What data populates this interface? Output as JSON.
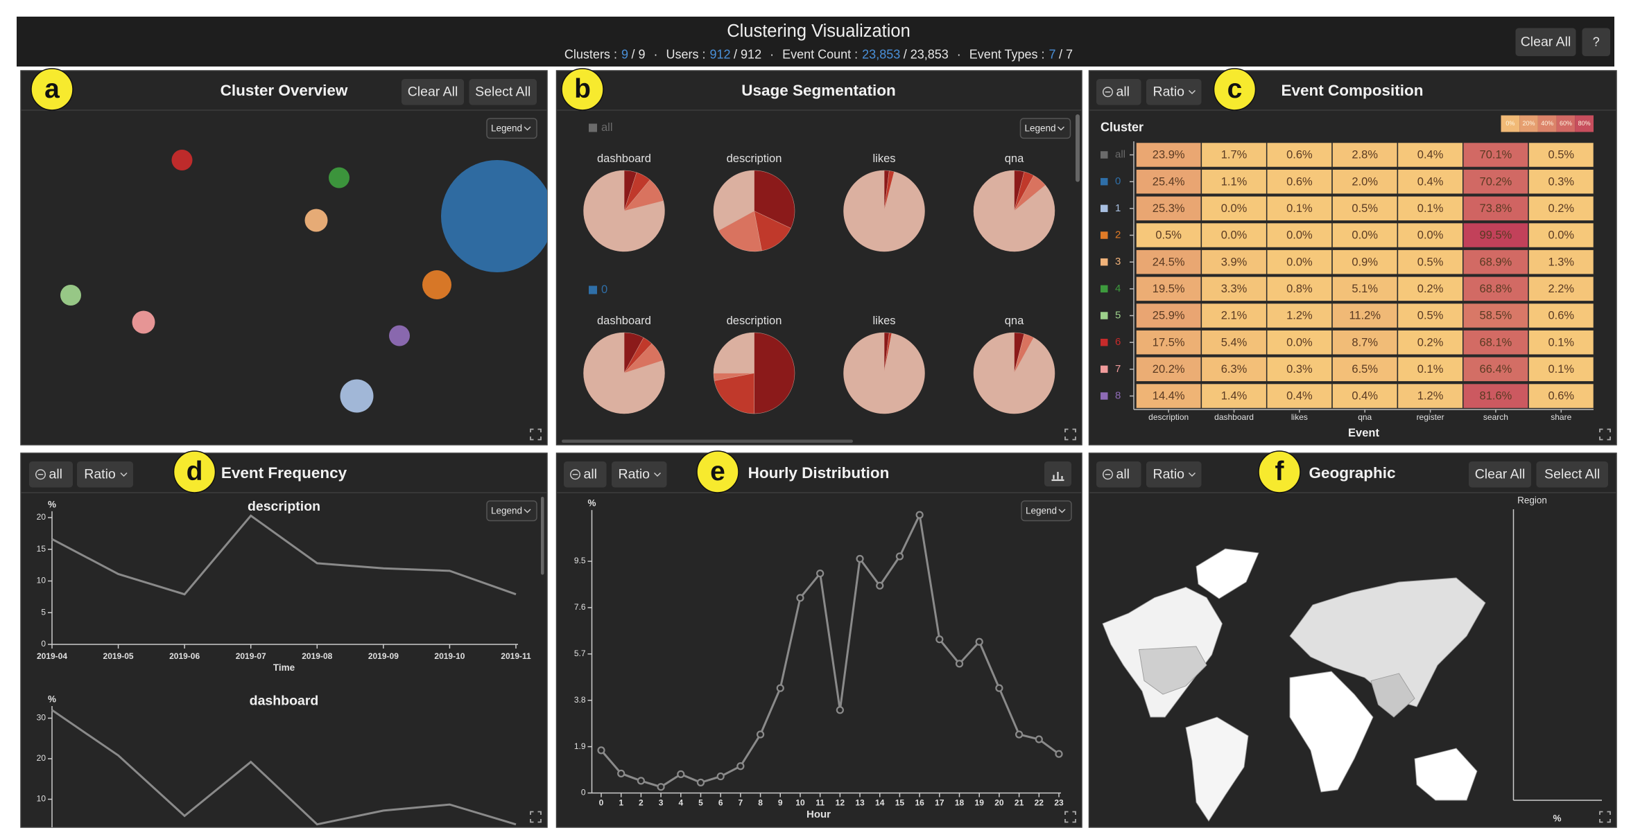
{
  "header": {
    "title": "Clustering Visualization",
    "separator": "·",
    "stats": [
      {
        "label": "Clusters :",
        "selected": "9",
        "total": "/ 9"
      },
      {
        "label": "Users :",
        "selected": "912",
        "total": "/ 912"
      },
      {
        "label": "Event Count :",
        "selected": "23,853",
        "total": "/ 23,853"
      },
      {
        "label": "Event Types :",
        "selected": "7",
        "total": "/ 7"
      }
    ],
    "buttons": [
      "Clear All",
      "?"
    ]
  },
  "panels": {
    "a": {
      "badge": "a",
      "title": "Cluster Overview",
      "buttons": [
        "Clear All",
        "Select All"
      ],
      "legend": "Legend"
    },
    "b": {
      "badge": "b",
      "title": "Usage Segmentation",
      "legend": "Legend",
      "slice_colors": [
        "#8b1a1a",
        "#c0392b",
        "#d9735f",
        "#dbb0a0"
      ],
      "groups": [
        {
          "name": "all",
          "color": "#6b6b6b",
          "pies": [
            {
              "label": "dashboard",
              "values": [
                5,
                6,
                10,
                79
              ]
            },
            {
              "label": "description",
              "values": [
                32,
                15,
                20,
                33
              ]
            },
            {
              "label": "likes",
              "values": [
                2,
                2,
                0,
                96
              ]
            },
            {
              "label": "qna",
              "values": [
                4,
                4,
                6,
                86
              ]
            }
          ]
        },
        {
          "name": "0",
          "color": "#2f6fa8",
          "pies": [
            {
              "label": "dashboard",
              "values": [
                8,
                4,
                8,
                80
              ]
            },
            {
              "label": "description",
              "values": [
                50,
                22,
                3,
                25
              ]
            },
            {
              "label": "likes",
              "values": [
                2,
                1,
                0,
                97
              ]
            },
            {
              "label": "qna",
              "values": [
                4,
                0,
                4,
                92
              ]
            }
          ]
        }
      ]
    },
    "c": {
      "badge": "c",
      "title": "Event Composition",
      "buttons": [
        "all",
        "Ratio"
      ],
      "row_header": "Cluster",
      "scale_labels": [
        "0%",
        "20%",
        "40%",
        "60%",
        "80%"
      ],
      "columns": [
        "description",
        "dashboard",
        "likes",
        "qna",
        "register",
        "search",
        "share"
      ],
      "axis_title": "Event",
      "rows": [
        {
          "label": "all",
          "color": "#6b6b6b",
          "cells": [
            "23.9%",
            "1.7%",
            "0.6%",
            "2.8%",
            "0.4%",
            "70.1%",
            "0.5%"
          ]
        },
        {
          "label": "0",
          "color": "#2f6fa8",
          "cells": [
            "25.4%",
            "1.1%",
            "0.6%",
            "2.0%",
            "0.4%",
            "70.2%",
            "0.3%"
          ]
        },
        {
          "label": "1",
          "color": "#a8bfe0",
          "cells": [
            "25.3%",
            "0.0%",
            "0.1%",
            "0.5%",
            "0.1%",
            "73.8%",
            "0.2%"
          ]
        },
        {
          "label": "2",
          "color": "#e07b27",
          "cells": [
            "0.5%",
            "0.0%",
            "0.0%",
            "0.0%",
            "0.0%",
            "99.5%",
            "0.0%"
          ]
        },
        {
          "label": "3",
          "color": "#f0b27a",
          "cells": [
            "24.5%",
            "3.9%",
            "0.0%",
            "0.9%",
            "0.5%",
            "68.9%",
            "1.3%"
          ]
        },
        {
          "label": "4",
          "color": "#3d9a3d",
          "cells": [
            "19.5%",
            "3.3%",
            "0.8%",
            "5.1%",
            "0.2%",
            "68.8%",
            "2.2%"
          ]
        },
        {
          "label": "5",
          "color": "#9dd08b",
          "cells": [
            "25.9%",
            "2.1%",
            "1.2%",
            "11.2%",
            "0.5%",
            "58.5%",
            "0.6%"
          ]
        },
        {
          "label": "6",
          "color": "#c62b2b",
          "cells": [
            "17.5%",
            "5.4%",
            "0.0%",
            "8.7%",
            "0.2%",
            "68.1%",
            "0.1%"
          ]
        },
        {
          "label": "7",
          "color": "#f09b9b",
          "cells": [
            "20.2%",
            "6.3%",
            "0.3%",
            "6.5%",
            "0.1%",
            "66.4%",
            "0.1%"
          ]
        },
        {
          "label": "8",
          "color": "#8e6bb5",
          "cells": [
            "14.4%",
            "1.4%",
            "0.4%",
            "0.4%",
            "1.2%",
            "81.6%",
            "0.6%"
          ]
        }
      ]
    },
    "d": {
      "badge": "d",
      "title": "Event Frequency",
      "buttons": [
        "all",
        "Ratio"
      ],
      "legend": "Legend",
      "charts": [
        {
          "type": "line",
          "title": "description",
          "y_label": "%",
          "x_label": "Time",
          "categories": [
            "2019-04",
            "2019-05",
            "2019-06",
            "2019-07",
            "2019-08",
            "2019-09",
            "2019-10",
            "2019-11"
          ],
          "values": [
            16.6,
            11.1,
            7.9,
            20.3,
            12.8,
            12,
            11.6,
            7.9
          ],
          "ylim": [
            0,
            21
          ],
          "yticks": [
            0,
            5,
            10,
            15,
            20
          ],
          "color": "#8a8a8a"
        },
        {
          "type": "line",
          "title": "dashboard",
          "y_label": "%",
          "values": [
            32,
            20.8,
            5.9,
            19.2,
            3.8,
            7.2,
            8.7,
            3.8
          ],
          "ylim": [
            0,
            33
          ],
          "yticks": [
            10,
            20,
            30
          ],
          "color": "#8a8a8a"
        }
      ]
    },
    "e": {
      "badge": "e",
      "title": "Hourly Distribution",
      "buttons": [
        "all",
        "Ratio"
      ],
      "legend": "Legend",
      "chart": {
        "type": "line",
        "y_label": "%",
        "x_label": "Hour",
        "x": [
          0,
          1,
          2,
          3,
          4,
          5,
          6,
          7,
          8,
          9,
          10,
          11,
          12,
          13,
          14,
          15,
          16,
          17,
          18,
          19,
          20,
          21,
          22,
          23
        ],
        "values": [
          1.75,
          0.8,
          0.5,
          0.25,
          0.77,
          0.43,
          0.68,
          1.1,
          2.4,
          4.3,
          8.0,
          9.0,
          3.4,
          9.6,
          8.5,
          9.7,
          11.4,
          6.3,
          5.3,
          6.2,
          4.3,
          2.4,
          2.2,
          1.6
        ],
        "xlim": [
          0,
          23
        ],
        "xticks": [
          0,
          1,
          2,
          3,
          4,
          5,
          6,
          7,
          8,
          9,
          10,
          11,
          12,
          13,
          14,
          15,
          16,
          17,
          18,
          19,
          20,
          21,
          22,
          23
        ],
        "ylim": [
          0,
          11.6
        ],
        "yticks": [
          0,
          1.9,
          3.8,
          5.7,
          7.6,
          9.5
        ],
        "color": "#8a8a8a"
      }
    },
    "f": {
      "badge": "f",
      "title": "Geographic",
      "buttons": [
        "all",
        "Ratio"
      ],
      "actions": [
        "Clear All",
        "Select All"
      ],
      "legend_title": "Region",
      "axis_label": "%"
    }
  }
}
